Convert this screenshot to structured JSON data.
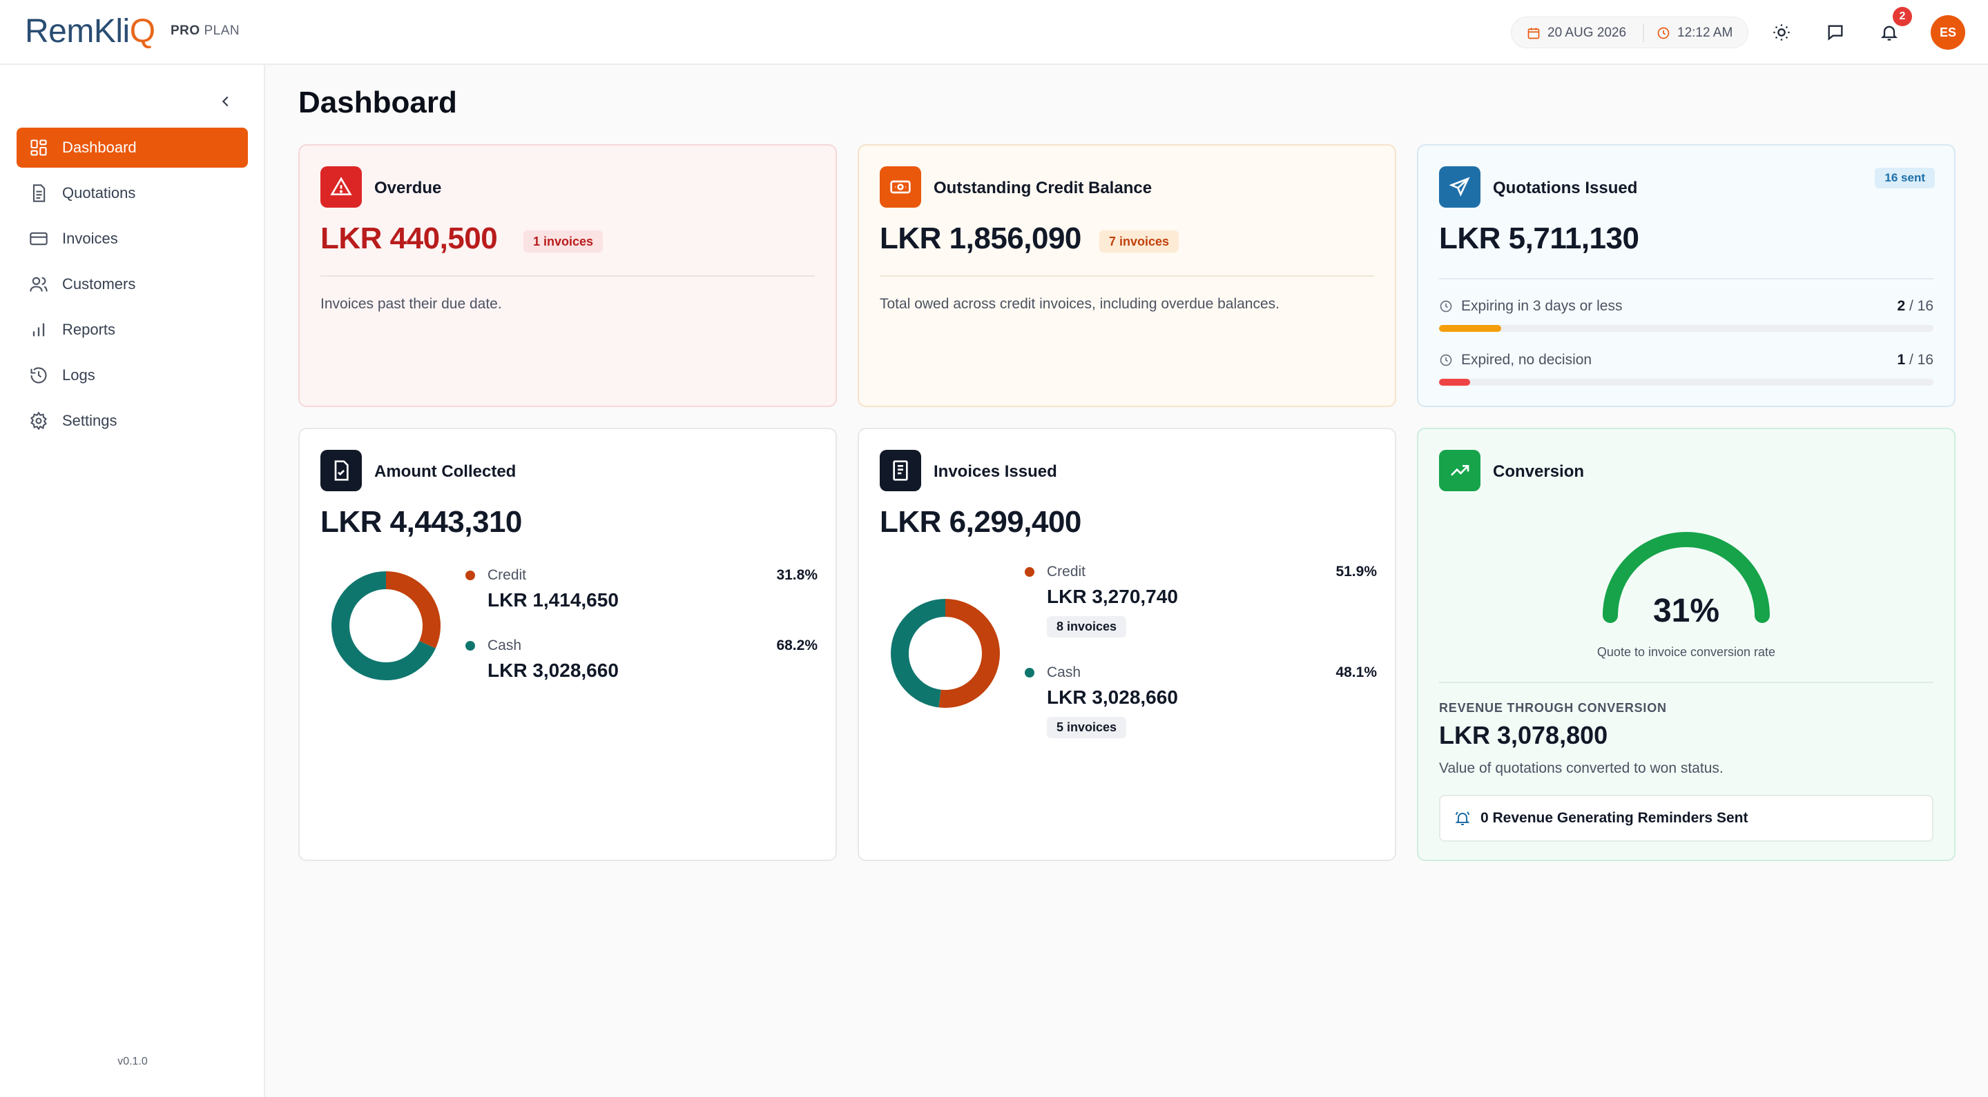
{
  "brand": {
    "logo_part1": "RemKli",
    "logo_part2": "Q",
    "plan_bold": "PRO",
    "plan_rest": "PLAN"
  },
  "header": {
    "date": "20 AUG 2026",
    "time": "12:12 AM",
    "notification_count": "2",
    "avatar_initials": "ES"
  },
  "sidebar": {
    "items": [
      {
        "label": "Dashboard",
        "icon": "dashboard-icon",
        "active": true
      },
      {
        "label": "Quotations",
        "icon": "document-icon"
      },
      {
        "label": "Invoices",
        "icon": "credit-card-icon"
      },
      {
        "label": "Customers",
        "icon": "users-icon"
      },
      {
        "label": "Reports",
        "icon": "bar-chart-icon"
      },
      {
        "label": "Logs",
        "icon": "history-icon"
      },
      {
        "label": "Settings",
        "icon": "gear-icon"
      }
    ],
    "version": "v0.1.0"
  },
  "page": {
    "title": "Dashboard"
  },
  "cards": {
    "overdue": {
      "title": "Overdue",
      "amount": "LKR 440,500",
      "chip": "1 invoices",
      "desc": "Invoices past their due date.",
      "color": "#dc2626"
    },
    "credit": {
      "title": "Outstanding Credit Balance",
      "amount": "LKR 1,856,090",
      "chip": "7 invoices",
      "desc": "Total owed across credit invoices, including overdue balances.",
      "color": "#ea580c"
    },
    "quotations": {
      "title": "Quotations Issued",
      "amount": "LKR 5,711,130",
      "chip": "16 sent",
      "color": "#1e6fa8",
      "rows": [
        {
          "label": "Expiring in 3 days or less",
          "count": "2",
          "total": "/ 16",
          "fraction": 0.125,
          "color": "#f59e0b"
        },
        {
          "label": "Expired, no decision",
          "count": "1",
          "total": "/ 16",
          "fraction": 0.0625,
          "color": "#ef4444"
        }
      ]
    },
    "collected": {
      "title": "Amount Collected",
      "amount": "LKR 4,443,310",
      "series": [
        {
          "name": "Credit",
          "amount": "LKR 1,414,650",
          "pct": "31.8%",
          "value": 31.8,
          "color": "#c2410c"
        },
        {
          "name": "Cash",
          "amount": "LKR 3,028,660",
          "pct": "68.2%",
          "value": 68.2,
          "color": "#0f766e"
        }
      ]
    },
    "issued": {
      "title": "Invoices Issued",
      "amount": "LKR 6,299,400",
      "series": [
        {
          "name": "Credit",
          "amount": "LKR 3,270,740",
          "pct": "51.9%",
          "value": 51.9,
          "chip": "8 invoices",
          "color": "#c2410c"
        },
        {
          "name": "Cash",
          "amount": "LKR 3,028,660",
          "pct": "48.1%",
          "value": 48.1,
          "chip": "5 invoices",
          "color": "#0f766e"
        }
      ]
    },
    "conversion": {
      "title": "Conversion",
      "pct": "31%",
      "value": 31,
      "caption": "Quote to invoice conversion rate",
      "revenue_label": "REVENUE THROUGH CONVERSION",
      "revenue_amount": "LKR 3,078,800",
      "revenue_desc": "Value of quotations converted to won status.",
      "reminder": "0 Revenue Generating Reminders Sent",
      "color": "#16a34a"
    }
  }
}
